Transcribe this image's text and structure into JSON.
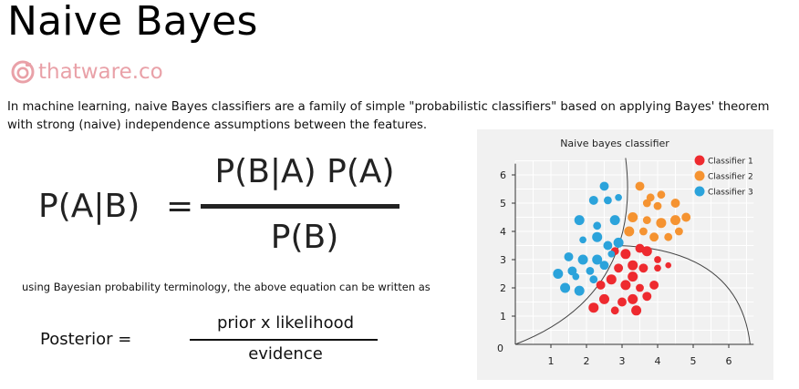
{
  "header": {
    "title": "Naive Bayes",
    "brand": "thatware.co",
    "brand_icon": "camera-icon",
    "brand_color": "#e9a1a8"
  },
  "intro_text": "In machine learning, naive Bayes classifiers are a family of simple \"probabilistic classifiers\" based on applying Bayes' theorem with strong (naive) independence assumptions between the features.",
  "formula": {
    "lhs": "P(A|B)",
    "equals": "=",
    "numerator": "P(B|A) P(A)",
    "denominator": "P(B)"
  },
  "note": "using Bayesian probability terminology, the above equation can be written as",
  "formula2": {
    "lhs": "Posterior =",
    "numerator": "prior x likelihood",
    "denominator": "evidence"
  },
  "chart_data": {
    "type": "scatter",
    "title": "Naive bayes classifier",
    "origin_label": "0",
    "x_ticks": [
      "1",
      "2",
      "3",
      "4",
      "5",
      "6"
    ],
    "y_ticks": [
      "1",
      "2",
      "3",
      "4",
      "5",
      "6"
    ],
    "xlim": [
      0,
      6.7
    ],
    "ylim": [
      0,
      6.5
    ],
    "grid": true,
    "legend_position": "top-right",
    "series": [
      {
        "name": "Classifier 1",
        "color": "#ee2a2f",
        "points": [
          {
            "x": 2.2,
            "y": 1.3,
            "s": 1
          },
          {
            "x": 2.5,
            "y": 1.6,
            "s": 1
          },
          {
            "x": 2.8,
            "y": 1.2,
            "s": 0.8
          },
          {
            "x": 3.0,
            "y": 1.5,
            "s": 0.9
          },
          {
            "x": 3.4,
            "y": 1.2,
            "s": 1
          },
          {
            "x": 3.3,
            "y": 1.6,
            "s": 1
          },
          {
            "x": 2.7,
            "y": 2.3,
            "s": 1
          },
          {
            "x": 2.4,
            "y": 2.1,
            "s": 0.9
          },
          {
            "x": 3.1,
            "y": 2.1,
            "s": 1
          },
          {
            "x": 3.5,
            "y": 2.0,
            "s": 0.8
          },
          {
            "x": 3.9,
            "y": 2.1,
            "s": 0.9
          },
          {
            "x": 3.7,
            "y": 1.7,
            "s": 0.9
          },
          {
            "x": 3.3,
            "y": 2.4,
            "s": 1
          },
          {
            "x": 2.9,
            "y": 2.7,
            "s": 0.9
          },
          {
            "x": 3.3,
            "y": 2.8,
            "s": 1
          },
          {
            "x": 3.6,
            "y": 2.7,
            "s": 0.9
          },
          {
            "x": 4.0,
            "y": 2.7,
            "s": 0.7
          },
          {
            "x": 3.1,
            "y": 3.2,
            "s": 1
          },
          {
            "x": 3.7,
            "y": 3.3,
            "s": 1
          },
          {
            "x": 2.8,
            "y": 3.3,
            "s": 0.8
          },
          {
            "x": 4.0,
            "y": 3.0,
            "s": 0.7
          },
          {
            "x": 4.3,
            "y": 2.8,
            "s": 0.6
          },
          {
            "x": 3.5,
            "y": 3.4,
            "s": 0.9
          }
        ]
      },
      {
        "name": "Classifier 2",
        "color": "#f59331",
        "points": [
          {
            "x": 3.5,
            "y": 5.6,
            "s": 0.9
          },
          {
            "x": 3.8,
            "y": 5.2,
            "s": 0.8
          },
          {
            "x": 4.1,
            "y": 5.3,
            "s": 0.8
          },
          {
            "x": 4.5,
            "y": 5.0,
            "s": 0.9
          },
          {
            "x": 4.0,
            "y": 4.9,
            "s": 0.8
          },
          {
            "x": 3.3,
            "y": 4.5,
            "s": 1
          },
          {
            "x": 3.7,
            "y": 4.4,
            "s": 0.8
          },
          {
            "x": 4.1,
            "y": 4.3,
            "s": 1
          },
          {
            "x": 4.5,
            "y": 4.4,
            "s": 1
          },
          {
            "x": 4.8,
            "y": 4.5,
            "s": 0.9
          },
          {
            "x": 3.2,
            "y": 4.0,
            "s": 1
          },
          {
            "x": 3.6,
            "y": 4.0,
            "s": 0.8
          },
          {
            "x": 3.9,
            "y": 3.8,
            "s": 0.9
          },
          {
            "x": 4.3,
            "y": 3.8,
            "s": 0.8
          },
          {
            "x": 4.6,
            "y": 4.0,
            "s": 0.8
          },
          {
            "x": 3.7,
            "y": 5.0,
            "s": 0.8
          }
        ]
      },
      {
        "name": "Classifier 3",
        "color": "#2ba3db",
        "points": [
          {
            "x": 2.5,
            "y": 5.6,
            "s": 0.9
          },
          {
            "x": 2.2,
            "y": 5.1,
            "s": 0.9
          },
          {
            "x": 2.6,
            "y": 5.1,
            "s": 0.8
          },
          {
            "x": 2.9,
            "y": 5.2,
            "s": 0.7
          },
          {
            "x": 1.8,
            "y": 4.4,
            "s": 1
          },
          {
            "x": 2.3,
            "y": 4.2,
            "s": 0.8
          },
          {
            "x": 2.8,
            "y": 4.4,
            "s": 1
          },
          {
            "x": 1.9,
            "y": 3.7,
            "s": 0.7
          },
          {
            "x": 2.3,
            "y": 3.8,
            "s": 1
          },
          {
            "x": 2.6,
            "y": 3.5,
            "s": 0.9
          },
          {
            "x": 2.9,
            "y": 3.6,
            "s": 1
          },
          {
            "x": 1.5,
            "y": 3.1,
            "s": 0.9
          },
          {
            "x": 1.9,
            "y": 3.0,
            "s": 1
          },
          {
            "x": 2.3,
            "y": 3.0,
            "s": 1
          },
          {
            "x": 2.7,
            "y": 3.2,
            "s": 0.7
          },
          {
            "x": 1.2,
            "y": 2.5,
            "s": 1
          },
          {
            "x": 1.6,
            "y": 2.6,
            "s": 0.9
          },
          {
            "x": 2.1,
            "y": 2.6,
            "s": 0.8
          },
          {
            "x": 2.5,
            "y": 2.8,
            "s": 0.9
          },
          {
            "x": 1.4,
            "y": 2.0,
            "s": 1
          },
          {
            "x": 1.8,
            "y": 1.9,
            "s": 1
          },
          {
            "x": 2.2,
            "y": 2.3,
            "s": 0.8
          },
          {
            "x": 1.7,
            "y": 2.4,
            "s": 0.7
          }
        ]
      }
    ],
    "boundary_curves": [
      {
        "name": "upward-boundary",
        "color": "#444444"
      },
      {
        "name": "arc-boundary",
        "color": "#444444"
      }
    ]
  }
}
